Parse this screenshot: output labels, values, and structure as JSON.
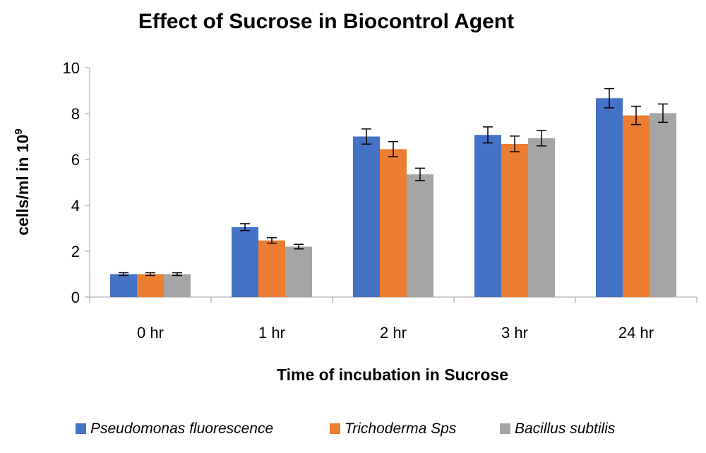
{
  "chart_data": {
    "type": "bar",
    "title": "Effect of Sucrose in Biocontrol Agent",
    "xlabel": "Time of incubation in Sucrose",
    "ylabel_main": "cells/ml in 10",
    "ylabel_sup": "9",
    "categories": [
      "0 hr",
      "1 hr",
      "2 hr",
      "3 hr",
      "24 hr"
    ],
    "ylim": [
      0,
      10
    ],
    "yticks": [
      0,
      2,
      4,
      6,
      8,
      10
    ],
    "grid": false,
    "legend_position": "bottom",
    "series": [
      {
        "name": "Pseudomonas fluorescence",
        "color": "#4472C4",
        "values": [
          1.0,
          3.05,
          7.0,
          7.07,
          8.67
        ],
        "errors": [
          0.06,
          0.15,
          0.33,
          0.35,
          0.42
        ]
      },
      {
        "name": "Trichoderma Sps",
        "color": "#ED7D31",
        "values": [
          1.0,
          2.47,
          6.45,
          6.68,
          7.92
        ],
        "errors": [
          0.06,
          0.12,
          0.33,
          0.34,
          0.4
        ]
      },
      {
        "name": "Bacillus subtilis",
        "color": "#A5A5A5",
        "values": [
          1.0,
          2.2,
          5.35,
          6.93,
          8.02
        ],
        "errors": [
          0.06,
          0.1,
          0.27,
          0.34,
          0.4
        ]
      }
    ]
  }
}
